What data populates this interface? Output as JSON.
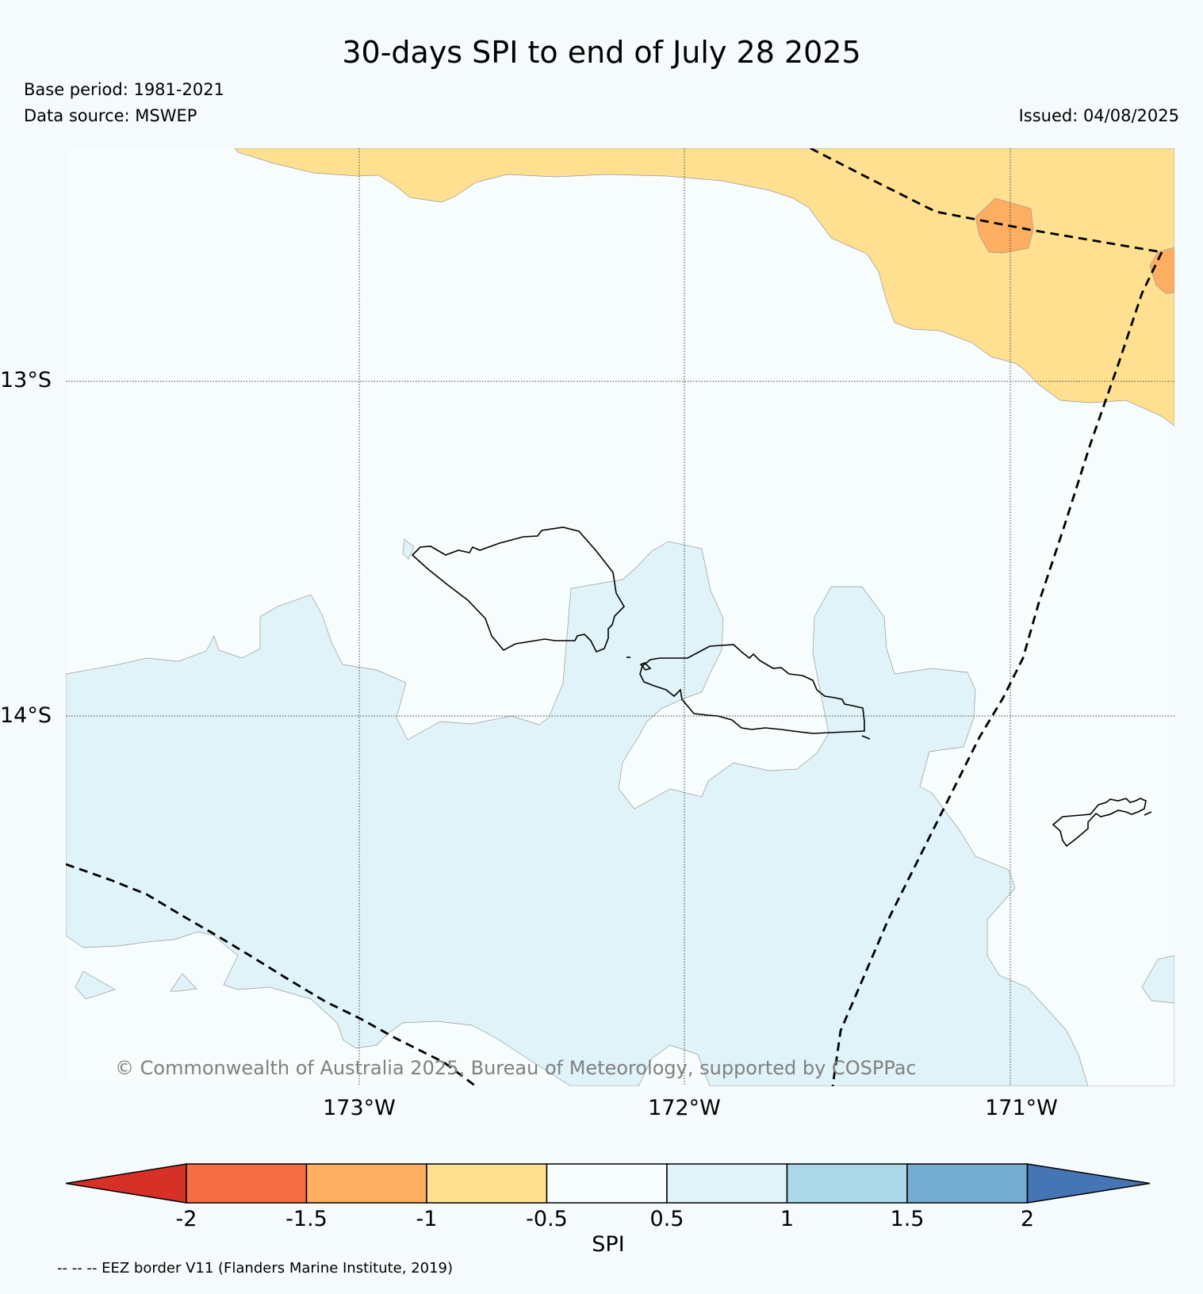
{
  "header": {
    "title": "30-days SPI to end of July 28 2025",
    "base_period": "Base period: 1981-2021",
    "data_source": "Data source: MSWEP",
    "issued": "Issued: 04/08/2025"
  },
  "map": {
    "lat_labels": [
      "13°S",
      "14°S"
    ],
    "lon_labels": [
      "173°W",
      "172°W",
      "171°W"
    ],
    "copyright": "© Commonwealth of Australia 2025, Bureau of Meteorology, supported by COSPPac",
    "colors": {
      "spi_-1_-0.5": "#fedf90",
      "spi_-1.5_-1": "#fbab5f",
      "spi_0.5_1": "#e0f3f8",
      "spi_-0.5_0.5": "#f7fcfd",
      "coastline": "#000000",
      "eez_border": "#000000"
    }
  },
  "colorbar": {
    "label": "SPI",
    "ticks": [
      "-2",
      "-1.5",
      "-1",
      "-0.5",
      "0.5",
      "1",
      "1.5",
      "2"
    ],
    "segments": [
      {
        "range": "< -2",
        "color": "#d73027"
      },
      {
        "range": "-2 to -1.5",
        "color": "#f46d43"
      },
      {
        "range": "-1.5 to -1",
        "color": "#fdae61"
      },
      {
        "range": "-1 to -0.5",
        "color": "#fee090"
      },
      {
        "range": "-0.5 to 0.5",
        "color": "#f7fcfd"
      },
      {
        "range": "0.5 to 1",
        "color": "#e0f3f8"
      },
      {
        "range": "1 to 1.5",
        "color": "#abd9e9"
      },
      {
        "range": "1.5 to 2",
        "color": "#74add1"
      },
      {
        "range": "> 2",
        "color": "#4575b4"
      }
    ]
  },
  "legend_note": "-- -- -- EEZ border V11 (Flanders Marine Institute, 2019)"
}
